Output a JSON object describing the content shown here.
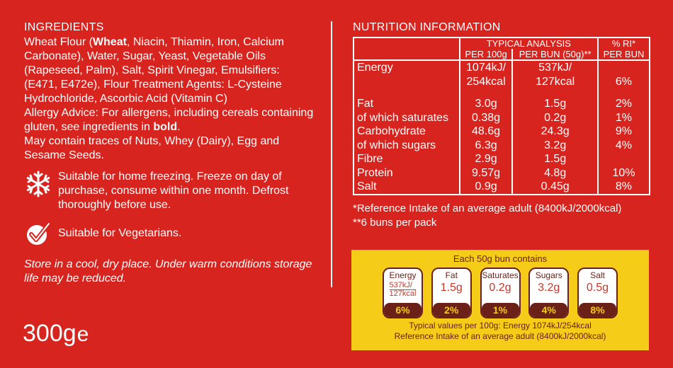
{
  "ingredients": {
    "heading": "INGREDIENTS",
    "text_parts": [
      "Wheat Flour (",
      "Wheat",
      ", Niacin, Thiamin, Iron, Calcium Carbonate), Water, Sugar, Yeast, Vegetable Oils (Rapeseed, Palm), Salt, Spirit Vinegar, Emulsifiers: (E471, E472e), Flour Treatment Agents: L-Cysteine Hydrochloride, Ascorbic Acid (Vitamin C)"
    ],
    "allergy_parts": [
      "Allergy Advice: For allergens, including cereals containing gluten, see ingredients in ",
      "bold",
      "."
    ],
    "traces": "May contain traces of Nuts, Whey (Dairy), Egg and Sesame Seeds."
  },
  "claims": {
    "freezing": "Suitable for home freezing. Freeze on day of purchase, consume within one month. Defrost thoroughly before use.",
    "vegetarian": "Suitable for Vegetarians."
  },
  "storage": "Store in a cool, dry place. Under warm conditions storage life may be reduced.",
  "weight": {
    "value": "300g",
    "mark": "e"
  },
  "nutrition": {
    "heading": "NUTRITION INFORMATION",
    "col_typical": "TYPICAL ANALYSIS",
    "col_per100": "PER 100g",
    "col_perbun": "PER BUN (50g)**",
    "col_ri": "% RI*",
    "col_ri2": "PER BUN",
    "energy_label": "Energy",
    "energy_100_kj": "1074kJ/",
    "energy_100_kcal": "254kcal",
    "energy_bun_kj": "537kJ/",
    "energy_bun_kcal": "127kcal",
    "energy_ri": "6%",
    "rows": [
      {
        "label": "Fat",
        "per100": "3.0g",
        "perbun": "1.5g",
        "ri": "2%"
      },
      {
        "label": "of which saturates",
        "per100": "0.38g",
        "perbun": "0.2g",
        "ri": "1%"
      },
      {
        "label": "Carbohydrate",
        "per100": "48.6g",
        "perbun": "24.3g",
        "ri": "9%"
      },
      {
        "label": "of which sugars",
        "per100": "6.3g",
        "perbun": "3.2g",
        "ri": "4%"
      },
      {
        "label": "Fibre",
        "per100": "2.9g",
        "perbun": "1.5g",
        "ri": ""
      },
      {
        "label": "Protein",
        "per100": "9.57g",
        "perbun": "4.8g",
        "ri": "10%"
      },
      {
        "label": "Salt",
        "per100": "0.9g",
        "perbun": "0.45g",
        "ri": "8%"
      }
    ],
    "footnote1": "*Reference Intake of an average adult (8400kJ/2000kcal)",
    "footnote2": "**6 buns per pack"
  },
  "gda": {
    "title": "Each 50g bun contains",
    "items": [
      {
        "name": "Energy",
        "value": "537kJ/",
        "value2": "127kcal",
        "pct": "6%"
      },
      {
        "name": "Fat",
        "value": "1.5g",
        "value2": "",
        "pct": "2%"
      },
      {
        "name": "Saturates",
        "value": "0.2g",
        "value2": "",
        "pct": "1%"
      },
      {
        "name": "Sugars",
        "value": "3.2g",
        "value2": "",
        "pct": "4%"
      },
      {
        "name": "Salt",
        "value": "0.5g",
        "value2": "",
        "pct": "8%"
      }
    ],
    "foot1": "Typical values per 100g: Energy 1074kJ/254kcal",
    "foot2": "Reference Intake of an average adult (8400kJ/2000kcal)"
  },
  "colors": {
    "background": "#d7241f",
    "gda_background": "#f5cc18",
    "gda_dark": "#6b2018"
  },
  "icons": [
    "snowflake-icon",
    "checkmark-icon"
  ]
}
